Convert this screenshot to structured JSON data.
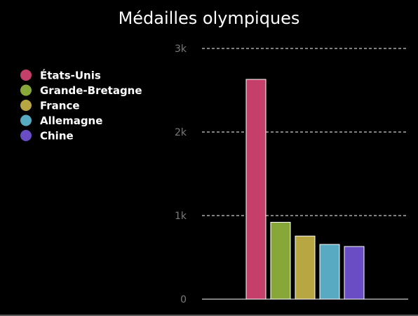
{
  "chart_data": {
    "type": "bar",
    "title": "Médailles olympiques",
    "categories": [
      "États-Unis",
      "Grande-Bretagne",
      "France",
      "Allemagne",
      "Chine"
    ],
    "values": [
      2630,
      920,
      755,
      655,
      630
    ],
    "colors": [
      "#c4406a",
      "#87a838",
      "#b8a642",
      "#58aac2",
      "#6a4cc4"
    ],
    "ylim": [
      0,
      3000
    ],
    "yticks": [
      {
        "value": 0,
        "label": "0"
      },
      {
        "value": 1000,
        "label": "1k"
      },
      {
        "value": 2000,
        "label": "2k"
      },
      {
        "value": 3000,
        "label": "3k"
      }
    ],
    "grid": true,
    "legend_position": "top-left"
  }
}
